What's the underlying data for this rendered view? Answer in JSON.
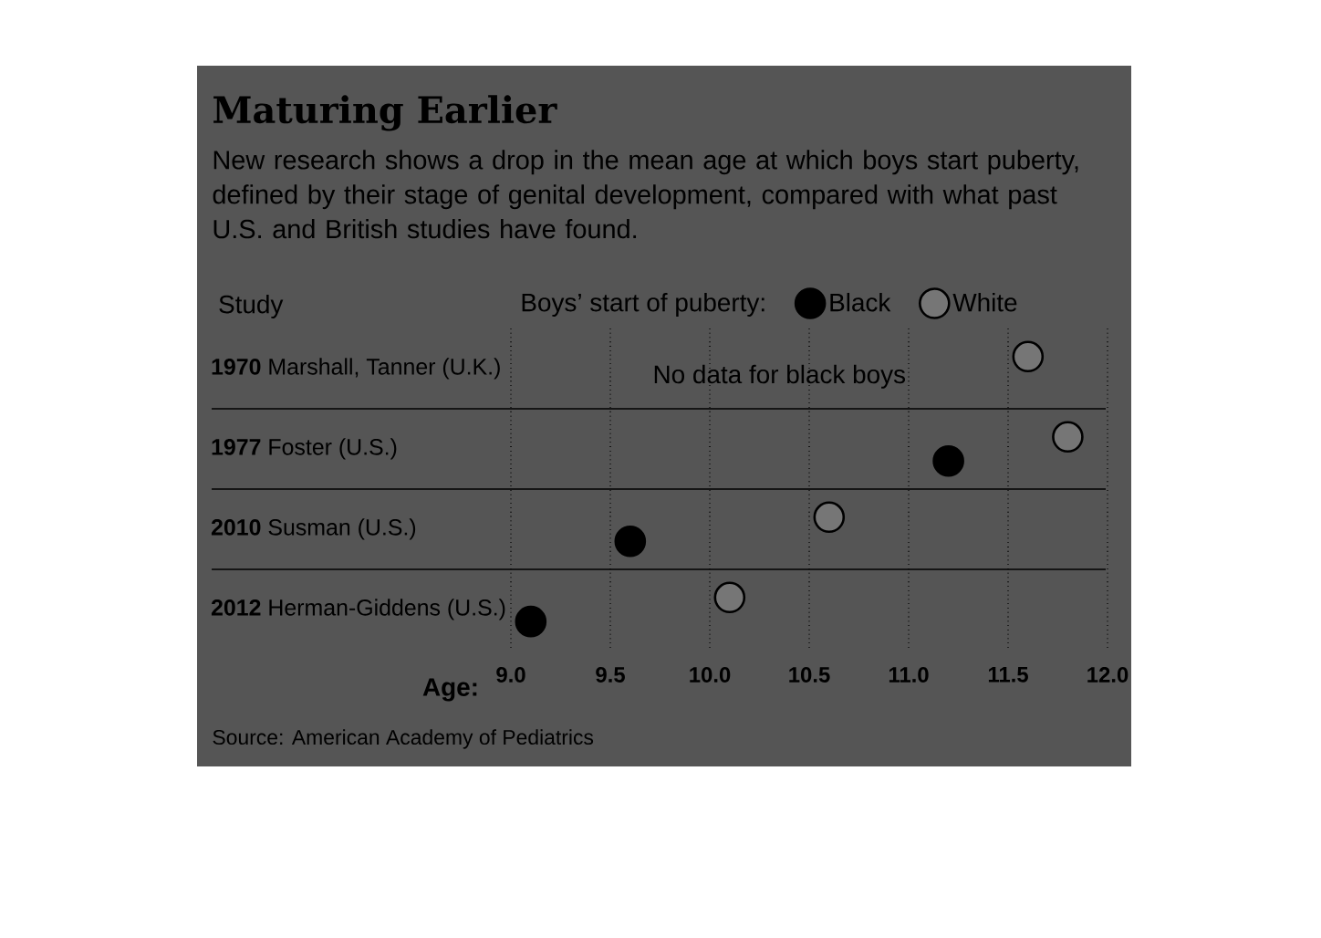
{
  "chart_data": {
    "type": "scatter",
    "title": "Maturing Earlier",
    "subtitle": "New research shows a drop in the mean age at which boys start puberty, defined by their stage of genital development, compared with what past U.S. and British studies have found.",
    "ylabel": "Study",
    "xlabel": "Age:",
    "legend_title": "Boys’ start of puberty:",
    "orientation": "horizontal",
    "categories": [
      "**1970** Marshall, Tanner (U.K.)",
      "**1977** Foster (U.S.)",
      "**2010** Susman (U.S.)",
      "**2012** Herman-Giddens (U.S.)"
    ],
    "series": [
      {
        "name": "Black",
        "color": "#000000",
        "values": [
          null,
          11.2,
          9.6,
          9.1
        ]
      },
      {
        "name": "White",
        "color": "#767676",
        "values": [
          11.6,
          11.8,
          10.6,
          10.1
        ]
      }
    ],
    "xlim": [
      9,
      12
    ],
    "xticks": [
      {
        "value": 9,
        "label": "9.0"
      },
      9.5,
      {
        "value": 10,
        "label": "10.0"
      },
      10.5,
      {
        "value": 11,
        "label": "11.0"
      },
      11.5,
      {
        "value": 12,
        "label": "12.0"
      }
    ],
    "grid": "x",
    "legend": "top",
    "marker": "circle",
    "annotations": [
      "No data for black boys",
      "Source: American Academy of Pediatrics"
    ]
  }
}
